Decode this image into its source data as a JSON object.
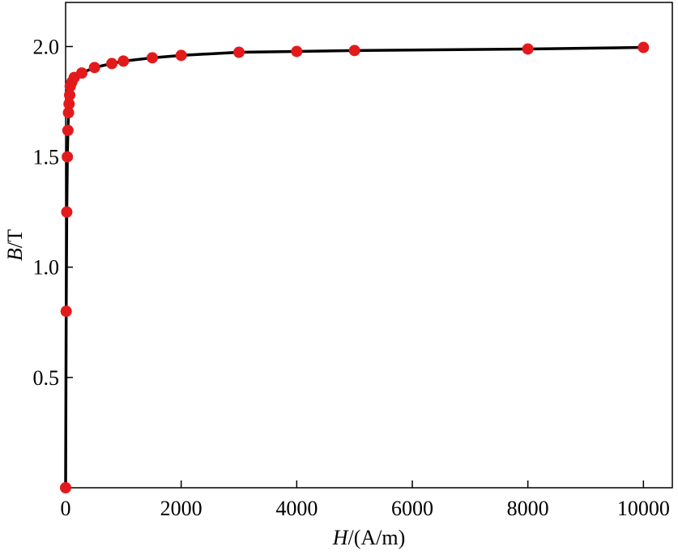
{
  "chart_data": {
    "type": "line",
    "x_label": "H/(A/m)",
    "y_label": "B/T",
    "xlim": [
      0,
      10500
    ],
    "ylim": [
      0,
      2.2
    ],
    "xticks": [
      0,
      2000,
      4000,
      6000,
      8000,
      10000
    ],
    "yticks": [
      0.5,
      {
        "value": 1.0,
        "label": "1.0"
      },
      1.5,
      {
        "value": 2.0,
        "label": "2.0"
      }
    ],
    "series": [
      {
        "marker_color": "#e31a1c",
        "line_color": "#000000",
        "x": [
          0,
          10,
          20,
          30,
          40,
          50,
          60,
          70,
          80,
          110,
          150,
          280,
          500,
          800,
          1000,
          1500,
          2000,
          3000,
          4000,
          5000,
          8000,
          10000
        ],
        "values": [
          0,
          0.8,
          1.25,
          1.5,
          1.62,
          1.7,
          1.74,
          1.78,
          1.82,
          1.84,
          1.86,
          1.88,
          1.905,
          1.923,
          1.934,
          1.949,
          1.96,
          1.974,
          1.978,
          1.982,
          1.989,
          1.996
        ]
      }
    ]
  }
}
